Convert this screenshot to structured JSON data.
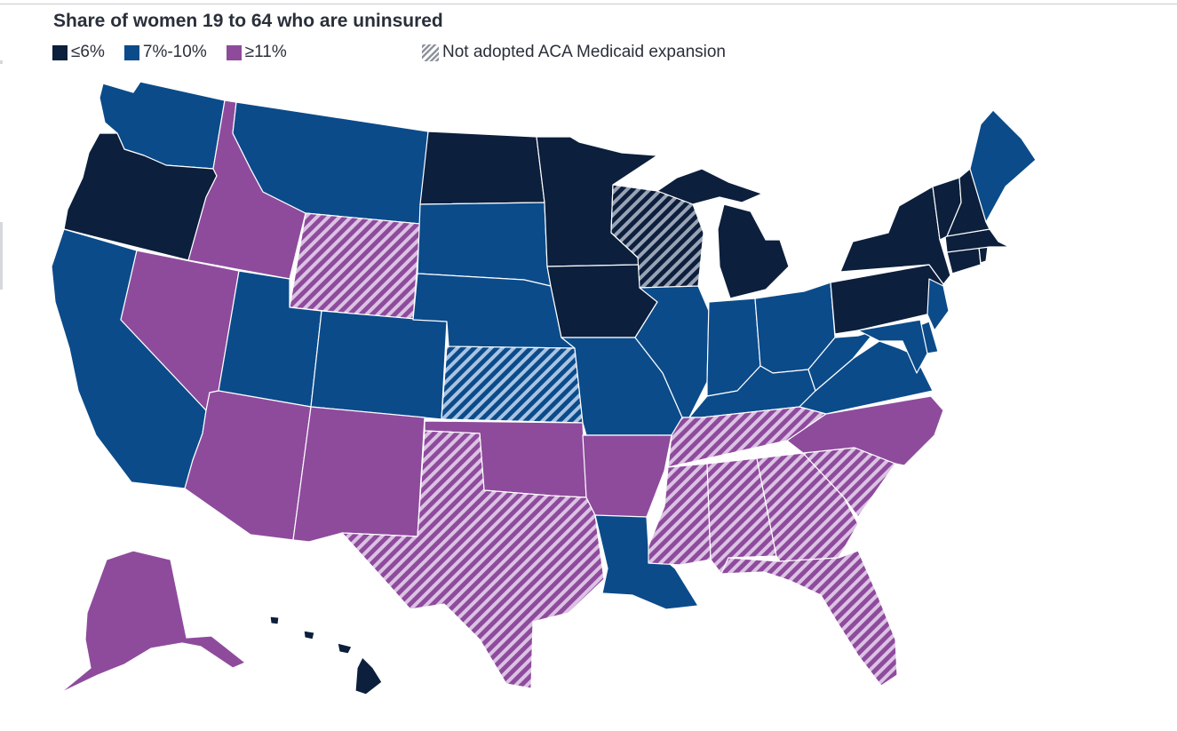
{
  "title": "Share of women 19 to 64 who are uninsured",
  "legend": {
    "categories": [
      {
        "key": "low",
        "label": "≤6%",
        "color": "#0c1f3c"
      },
      {
        "key": "mid",
        "label": "7%-10%",
        "color": "#0b4b8a"
      },
      {
        "key": "high",
        "label": "≥11%",
        "color": "#8e4b9c"
      }
    ],
    "hatch_label": "Not adopted ACA Medicaid expansion"
  },
  "states": [
    {
      "id": "WA",
      "category": "mid",
      "not_expanded": false
    },
    {
      "id": "OR",
      "category": "low",
      "not_expanded": false
    },
    {
      "id": "CA",
      "category": "mid",
      "not_expanded": false
    },
    {
      "id": "NV",
      "category": "high",
      "not_expanded": false
    },
    {
      "id": "ID",
      "category": "high",
      "not_expanded": false
    },
    {
      "id": "MT",
      "category": "mid",
      "not_expanded": false
    },
    {
      "id": "WY",
      "category": "high",
      "not_expanded": true
    },
    {
      "id": "UT",
      "category": "mid",
      "not_expanded": false
    },
    {
      "id": "AZ",
      "category": "high",
      "not_expanded": false
    },
    {
      "id": "CO",
      "category": "mid",
      "not_expanded": false
    },
    {
      "id": "NM",
      "category": "high",
      "not_expanded": false
    },
    {
      "id": "ND",
      "category": "low",
      "not_expanded": false
    },
    {
      "id": "SD",
      "category": "mid",
      "not_expanded": false
    },
    {
      "id": "NE",
      "category": "mid",
      "not_expanded": false
    },
    {
      "id": "KS",
      "category": "mid",
      "not_expanded": true
    },
    {
      "id": "OK",
      "category": "high",
      "not_expanded": false
    },
    {
      "id": "TX",
      "category": "high",
      "not_expanded": true
    },
    {
      "id": "MN",
      "category": "low",
      "not_expanded": false
    },
    {
      "id": "IA",
      "category": "low",
      "not_expanded": false
    },
    {
      "id": "MO",
      "category": "mid",
      "not_expanded": false
    },
    {
      "id": "AR",
      "category": "high",
      "not_expanded": false
    },
    {
      "id": "LA",
      "category": "mid",
      "not_expanded": false
    },
    {
      "id": "WI",
      "category": "low",
      "not_expanded": true
    },
    {
      "id": "IL",
      "category": "mid",
      "not_expanded": false
    },
    {
      "id": "MI",
      "category": "low",
      "not_expanded": false
    },
    {
      "id": "IN",
      "category": "mid",
      "not_expanded": false
    },
    {
      "id": "OH",
      "category": "mid",
      "not_expanded": false
    },
    {
      "id": "KY",
      "category": "mid",
      "not_expanded": false
    },
    {
      "id": "TN",
      "category": "high",
      "not_expanded": true
    },
    {
      "id": "MS",
      "category": "high",
      "not_expanded": true
    },
    {
      "id": "AL",
      "category": "high",
      "not_expanded": true
    },
    {
      "id": "GA",
      "category": "high",
      "not_expanded": true
    },
    {
      "id": "FL",
      "category": "high",
      "not_expanded": true
    },
    {
      "id": "SC",
      "category": "high",
      "not_expanded": true
    },
    {
      "id": "NC",
      "category": "high",
      "not_expanded": false
    },
    {
      "id": "VA",
      "category": "mid",
      "not_expanded": false
    },
    {
      "id": "WV",
      "category": "mid",
      "not_expanded": false
    },
    {
      "id": "PA",
      "category": "low",
      "not_expanded": false
    },
    {
      "id": "NY",
      "category": "low",
      "not_expanded": false
    },
    {
      "id": "NJ",
      "category": "mid",
      "not_expanded": false
    },
    {
      "id": "DE",
      "category": "mid",
      "not_expanded": false
    },
    {
      "id": "MD",
      "category": "mid",
      "not_expanded": false
    },
    {
      "id": "CT",
      "category": "low",
      "not_expanded": false
    },
    {
      "id": "RI",
      "category": "low",
      "not_expanded": false
    },
    {
      "id": "MA",
      "category": "low",
      "not_expanded": false
    },
    {
      "id": "VT",
      "category": "low",
      "not_expanded": false
    },
    {
      "id": "NH",
      "category": "low",
      "not_expanded": false
    },
    {
      "id": "ME",
      "category": "mid",
      "not_expanded": false
    },
    {
      "id": "AK",
      "category": "high",
      "not_expanded": false
    },
    {
      "id": "HI",
      "category": "low",
      "not_expanded": false
    }
  ]
}
